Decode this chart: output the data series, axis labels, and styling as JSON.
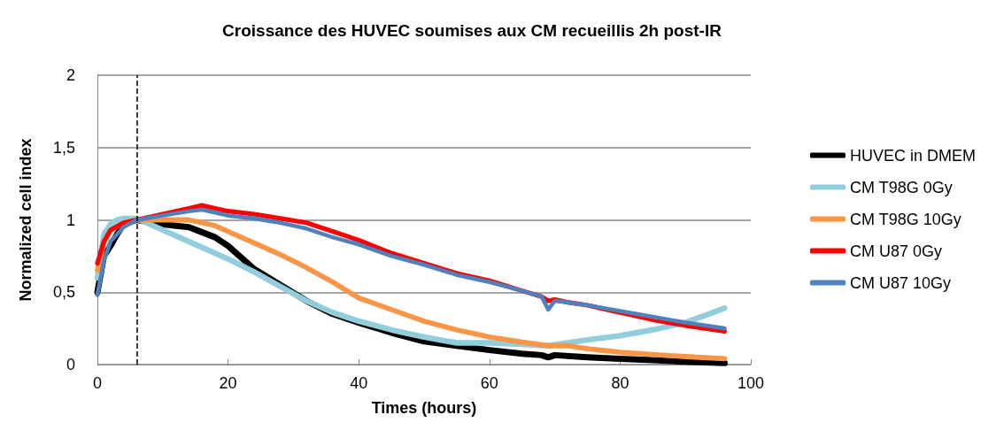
{
  "chart_data": {
    "type": "line",
    "title": "Croissance des HUVEC soumises aux CM recueillis 2h post-IR",
    "xlabel": "Times (hours)",
    "ylabel": "Normalized cell index",
    "xlim": [
      0,
      100
    ],
    "xticks": [
      0,
      20,
      40,
      60,
      80,
      100
    ],
    "ylim": [
      0,
      2
    ],
    "yticks": [
      0,
      {
        "value": 0.5,
        "label": "0,5"
      },
      1,
      {
        "value": 1.5,
        "label": "1,5"
      },
      2
    ],
    "grid": "y",
    "legend": "right",
    "marker": "none",
    "line_style": "solid",
    "ref_lines": [
      {
        "axis": "x",
        "value": 6,
        "label": null,
        "color": "#000000",
        "line_style": "dashed"
      }
    ],
    "series": [
      {
        "name": "HUVEC in DMEM",
        "color": "#000000",
        "x": [
          0,
          1,
          2,
          3,
          4,
          6,
          10,
          14,
          18,
          20,
          24,
          28,
          32,
          36,
          40,
          45,
          50,
          55,
          60,
          65,
          68,
          69,
          70,
          75,
          80,
          85,
          90,
          96
        ],
        "values": [
          0.5,
          0.75,
          0.82,
          0.9,
          0.97,
          1.0,
          0.97,
          0.95,
          0.88,
          0.82,
          0.66,
          0.55,
          0.44,
          0.35,
          0.29,
          0.22,
          0.16,
          0.13,
          0.1,
          0.075,
          0.065,
          0.05,
          0.065,
          0.05,
          0.04,
          0.03,
          0.02,
          0.01
        ]
      },
      {
        "name": "CM T98G 0Gy",
        "color": "#92cddc",
        "x": [
          0,
          1,
          2,
          3,
          4,
          6,
          8,
          10,
          14,
          18,
          20,
          24,
          28,
          32,
          36,
          40,
          45,
          50,
          55,
          60,
          65,
          69,
          72,
          75,
          80,
          85,
          90,
          93,
          96
        ],
        "values": [
          0.6,
          0.9,
          0.97,
          1.0,
          1.01,
          1.01,
          0.97,
          0.93,
          0.85,
          0.77,
          0.73,
          0.64,
          0.54,
          0.44,
          0.36,
          0.3,
          0.24,
          0.19,
          0.15,
          0.15,
          0.14,
          0.13,
          0.15,
          0.17,
          0.2,
          0.24,
          0.29,
          0.34,
          0.39
        ]
      },
      {
        "name": "CM T98G 10Gy",
        "color": "#f79646",
        "x": [
          0,
          1,
          2,
          4,
          6,
          10,
          14,
          18,
          20,
          24,
          28,
          32,
          36,
          40,
          45,
          50,
          55,
          60,
          65,
          69,
          72,
          75,
          80,
          85,
          90,
          96
        ],
        "values": [
          0.65,
          0.85,
          0.93,
          0.98,
          1.0,
          1.0,
          1.0,
          0.96,
          0.92,
          0.84,
          0.76,
          0.67,
          0.57,
          0.46,
          0.38,
          0.3,
          0.24,
          0.19,
          0.155,
          0.13,
          0.13,
          0.11,
          0.085,
          0.07,
          0.055,
          0.04
        ]
      },
      {
        "name": "CM U87 0Gy",
        "color": "#ff0000",
        "x": [
          0,
          1,
          2,
          4,
          6,
          10,
          14,
          16,
          18,
          20,
          24,
          28,
          32,
          36,
          40,
          45,
          50,
          55,
          60,
          65,
          68,
          69,
          70,
          72,
          75,
          80,
          85,
          90,
          96
        ],
        "values": [
          0.7,
          0.85,
          0.93,
          0.98,
          1.0,
          1.04,
          1.08,
          1.1,
          1.08,
          1.06,
          1.04,
          1.01,
          0.98,
          0.92,
          0.86,
          0.77,
          0.7,
          0.63,
          0.58,
          0.51,
          0.47,
          0.44,
          0.45,
          0.43,
          0.41,
          0.36,
          0.31,
          0.27,
          0.23
        ]
      },
      {
        "name": "CM U87 10Gy",
        "color": "#4f81bd",
        "x": [
          0,
          1,
          2,
          4,
          6,
          10,
          14,
          16,
          18,
          20,
          24,
          28,
          32,
          36,
          40,
          45,
          50,
          55,
          60,
          65,
          68,
          69,
          70,
          72,
          75,
          80,
          85,
          90,
          96
        ],
        "values": [
          0.48,
          0.72,
          0.85,
          0.95,
          1.0,
          1.03,
          1.06,
          1.07,
          1.05,
          1.03,
          1.01,
          0.98,
          0.94,
          0.88,
          0.83,
          0.75,
          0.69,
          0.62,
          0.57,
          0.51,
          0.47,
          0.38,
          0.44,
          0.43,
          0.41,
          0.37,
          0.33,
          0.29,
          0.25
        ]
      }
    ]
  }
}
